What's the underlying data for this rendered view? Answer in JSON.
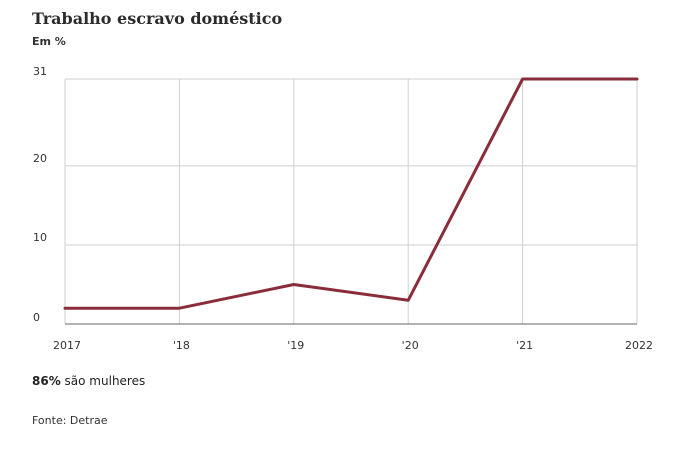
{
  "title": "Trabalho escravo doméstico",
  "unit_label": "Em %",
  "note": {
    "highlight": "86%",
    "text": " são mulheres"
  },
  "source": "Fonte: Detrae",
  "colors": {
    "line": "#8b2c3a",
    "grid": "#cfcfcf",
    "axis": "#666666"
  },
  "chart_data": {
    "type": "line",
    "title": "Trabalho escravo doméstico",
    "ylabel": "Em %",
    "xlabel": "",
    "categories": [
      "2017",
      "'18",
      "'19",
      "'20",
      "'21",
      "2022"
    ],
    "x": [
      2017,
      2018,
      2019,
      2020,
      2021,
      2022
    ],
    "series": [
      {
        "values": [
          2,
          2,
          5,
          3,
          31,
          31
        ]
      }
    ],
    "ylim": [
      0,
      31
    ],
    "yticks": [
      0,
      10,
      20,
      31
    ],
    "grid": true,
    "legend": "none"
  }
}
